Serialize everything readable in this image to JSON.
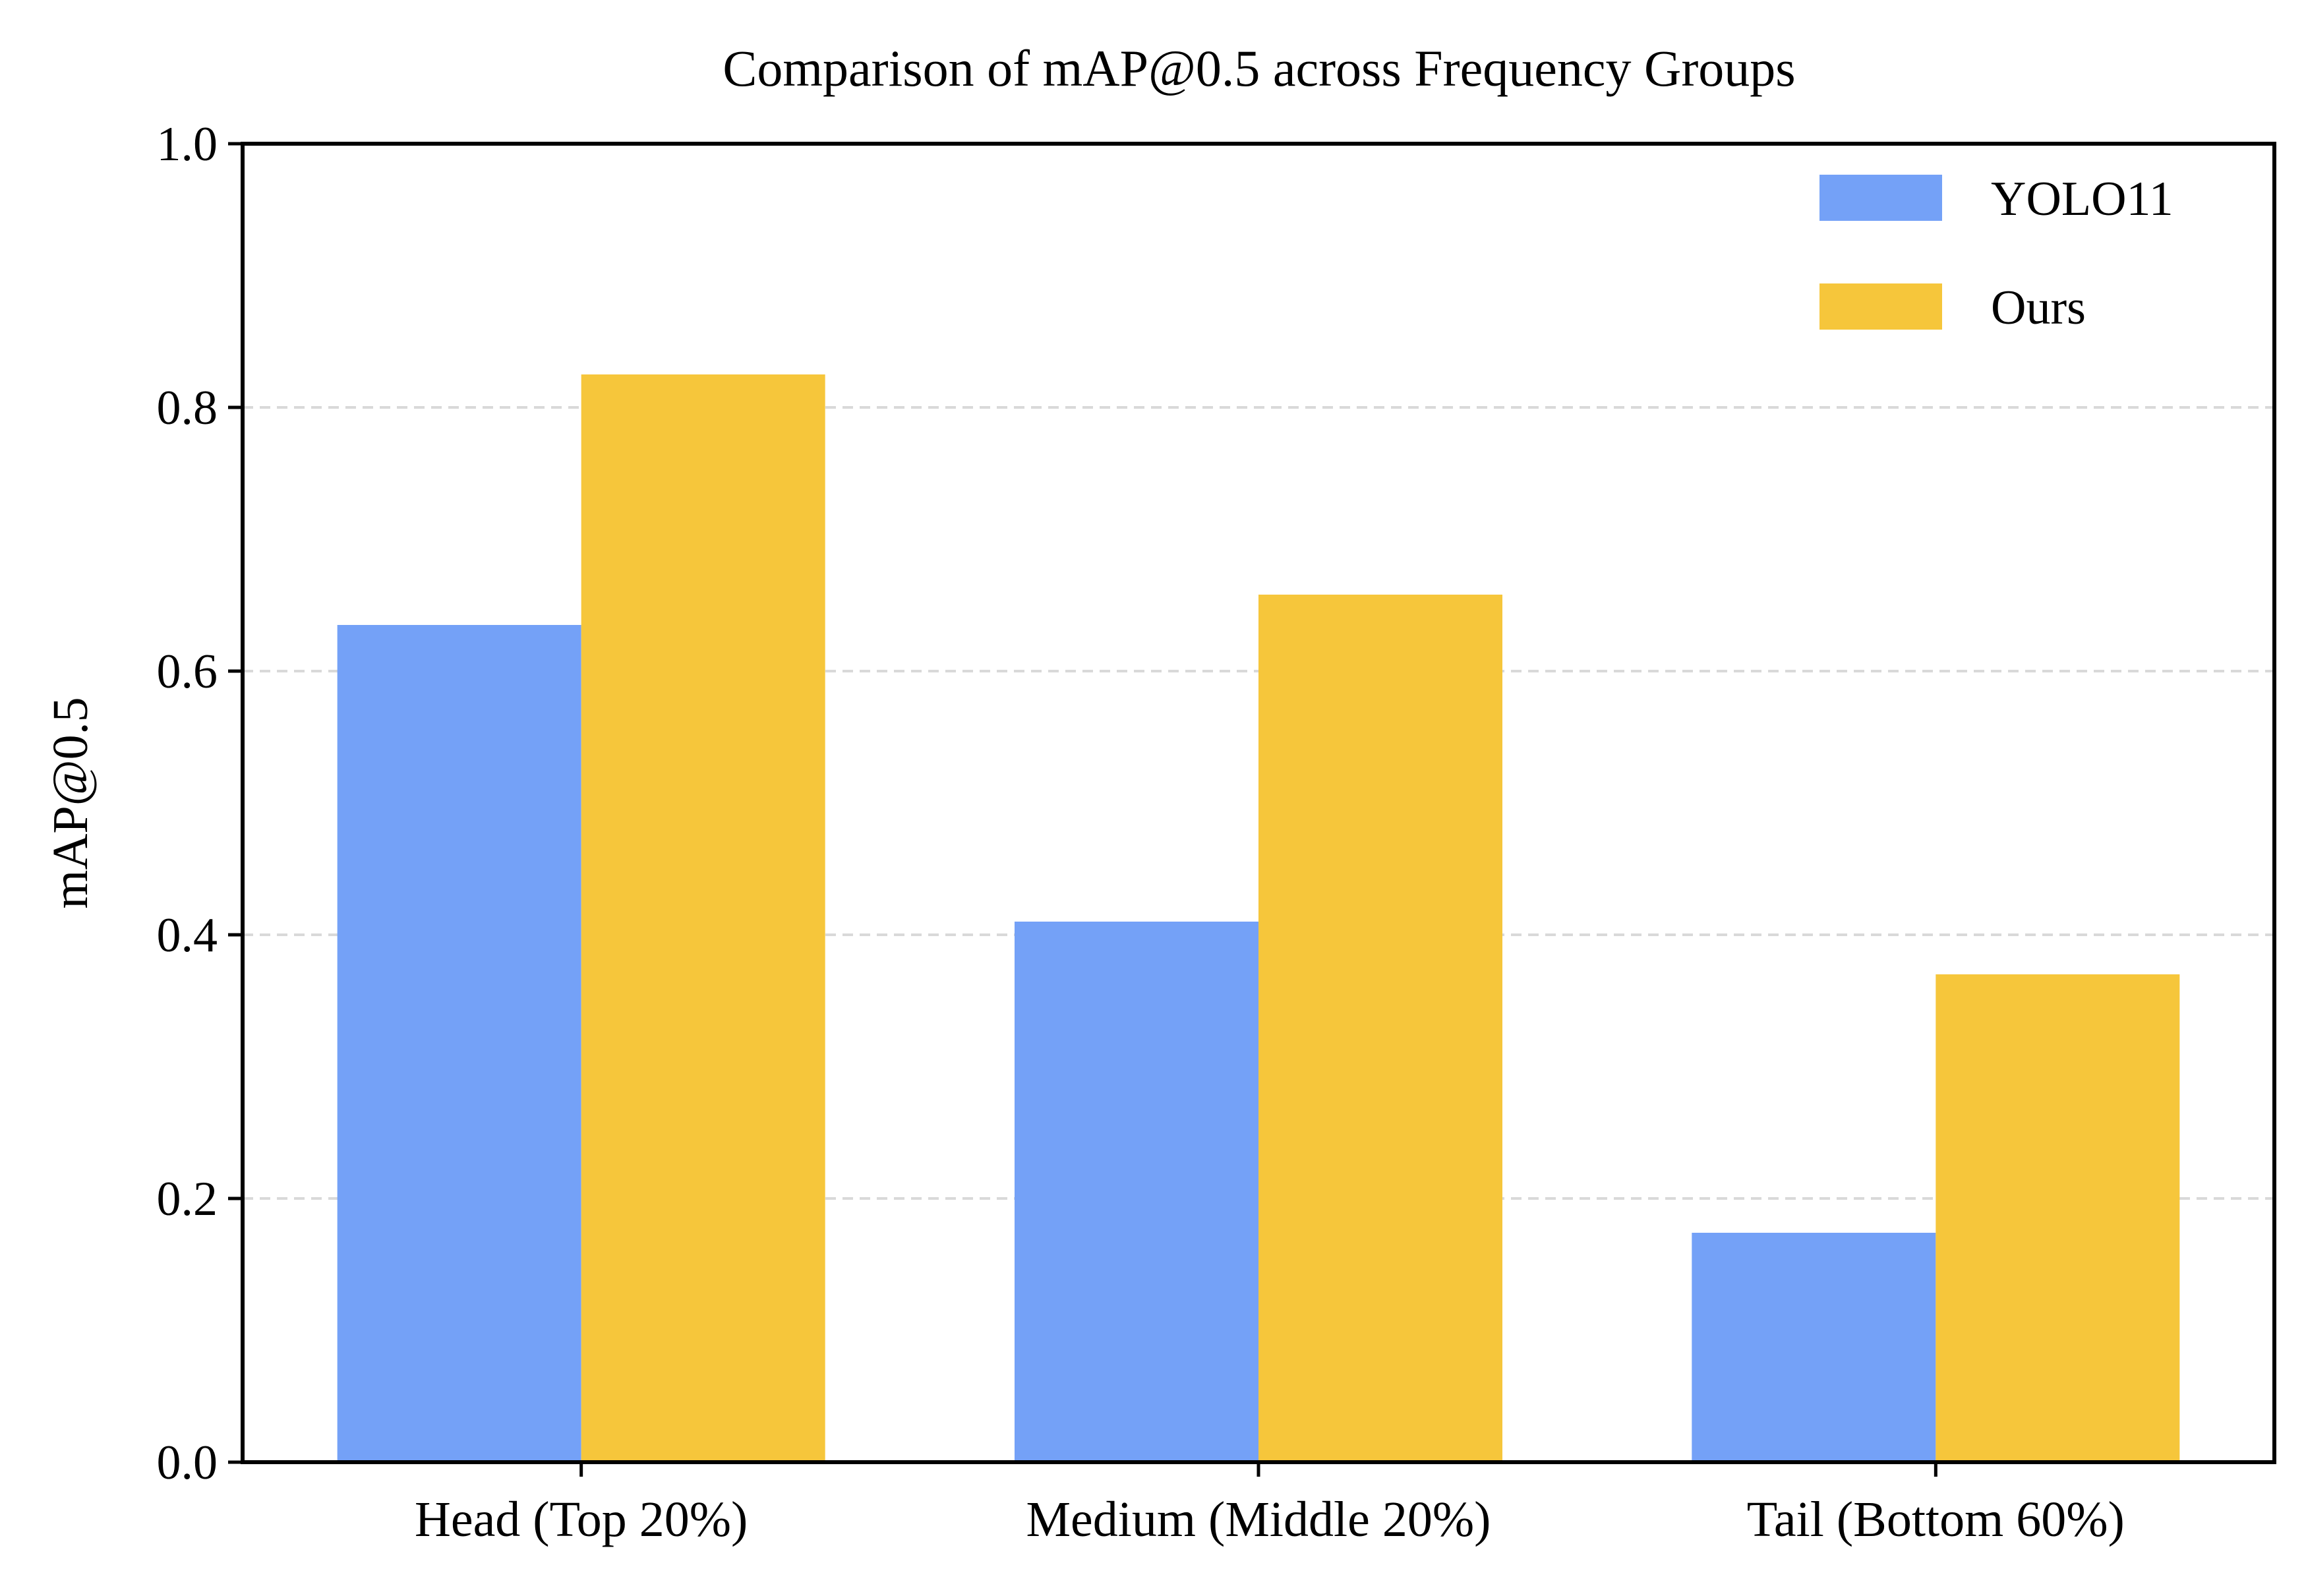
{
  "chart_data": {
    "type": "bar",
    "title": "Comparison of mAP@0.5 across Frequency Groups",
    "xlabel": "",
    "ylabel": "mAP@0.5",
    "categories": [
      "Head (Top 20%)",
      "Medium (Middle 20%)",
      "Tail (Bottom 60%)"
    ],
    "series": [
      {
        "name": "YOLO11",
        "values": [
          0.635,
          0.41,
          0.174
        ],
        "color": "#74a1f7"
      },
      {
        "name": "Ours",
        "values": [
          0.825,
          0.658,
          0.37
        ],
        "color": "#f6c63b"
      }
    ],
    "ylim": [
      0.0,
      1.0
    ],
    "yticks": [
      "0.0",
      "0.2",
      "0.4",
      "0.6",
      "0.8",
      "1.0"
    ],
    "grid": "horizontal dashed",
    "legend_position": "top-right"
  }
}
